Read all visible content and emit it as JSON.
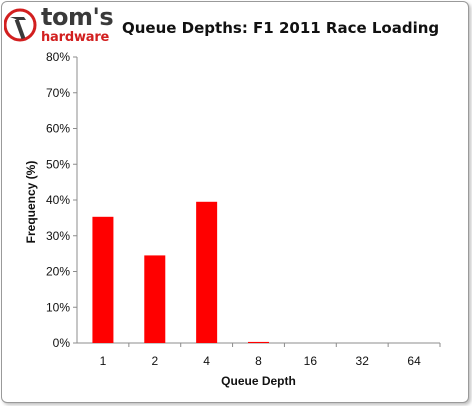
{
  "brand": {
    "name": "tom's",
    "sub": "hardware"
  },
  "colors": {
    "bar": "#ff0000",
    "axis": "#8c8c8c",
    "brand_red": "#d21f1f"
  },
  "chart_data": {
    "type": "bar",
    "title": "Queue Depths: F1 2011 Race Loading",
    "xlabel": "Queue Depth",
    "ylabel": "Frequency (%)",
    "categories": [
      "1",
      "2",
      "4",
      "8",
      "16",
      "32",
      "64"
    ],
    "values": [
      35.3,
      24.5,
      39.5,
      0.3,
      0,
      0,
      0
    ],
    "ylim": [
      0,
      80
    ],
    "yticks": [
      0,
      10,
      20,
      30,
      40,
      50,
      60,
      70,
      80
    ],
    "ytick_labels": [
      "0%",
      "10%",
      "20%",
      "30%",
      "40%",
      "50%",
      "60%",
      "70%",
      "80%"
    ],
    "grid": false,
    "legend": "none"
  }
}
